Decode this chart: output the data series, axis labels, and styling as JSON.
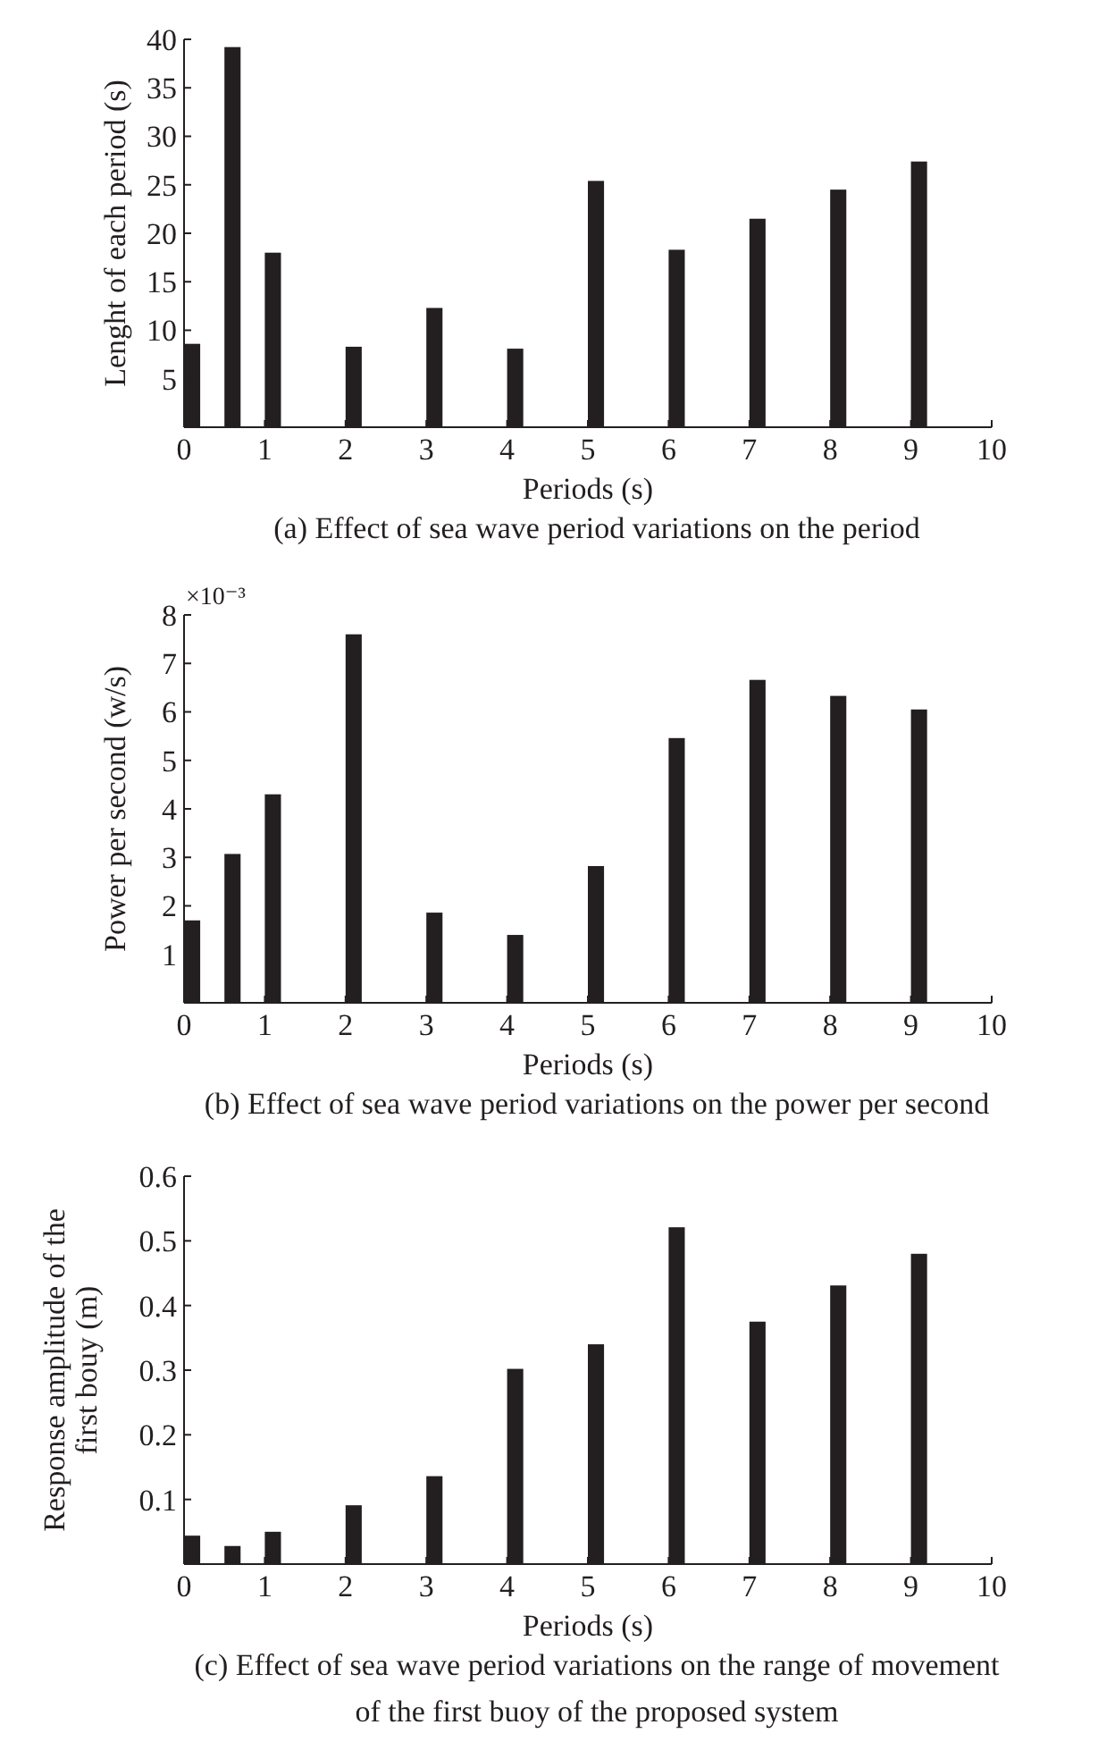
{
  "chart_data": [
    {
      "type": "bar",
      "title": "(a) Effect of sea wave period variations on the period",
      "xlabel": "Periods (s)",
      "ylabel": "Lenght of each period (s)",
      "x": [
        0.1,
        0.6,
        1.1,
        2.1,
        3.1,
        4.1,
        5.1,
        6.1,
        7.1,
        8.1,
        9.1
      ],
      "values": [
        8.6,
        39.2,
        18.0,
        8.3,
        12.3,
        8.1,
        25.4,
        18.3,
        21.5,
        24.5,
        27.4
      ],
      "color": "#231f20",
      "xlim": [
        0,
        10
      ],
      "xticks": [
        0,
        1,
        2,
        3,
        4,
        5,
        6,
        7,
        8,
        9,
        10
      ],
      "ylim": [
        0,
        40
      ],
      "yticks": [
        5,
        10,
        15,
        20,
        25,
        30,
        35,
        40
      ],
      "grid": false
    },
    {
      "type": "bar",
      "title": "(b) Effect of sea wave period variations on the power per second",
      "xlabel": "Periods (s)",
      "ylabel": "Power per second (w/s)",
      "annotations": [
        "×10⁻³"
      ],
      "x": [
        0.1,
        0.6,
        1.1,
        2.1,
        3.1,
        4.1,
        5.1,
        6.1,
        7.1,
        8.1,
        9.1
      ],
      "values": [
        1.7,
        3.07,
        4.3,
        7.6,
        1.86,
        1.4,
        2.82,
        5.46,
        6.66,
        6.33,
        6.05
      ],
      "color": "#231f20",
      "xlim": [
        0,
        10
      ],
      "xticks": [
        0,
        1,
        2,
        3,
        4,
        5,
        6,
        7,
        8,
        9,
        10
      ],
      "ylim": [
        0,
        8
      ],
      "yticks": [
        1,
        2,
        3,
        4,
        5,
        6,
        7,
        8
      ],
      "grid": false
    },
    {
      "type": "bar",
      "title": "(c) Effect of sea wave period variations on the range of movement of the first buoy of the proposed system",
      "xlabel": "Periods (s)",
      "ylabel": "Response amplitude of the first bouy (m)",
      "x": [
        0.1,
        0.6,
        1.1,
        2.1,
        3.1,
        4.1,
        5.1,
        6.1,
        7.1,
        8.1,
        9.1
      ],
      "values": [
        0.044,
        0.028,
        0.05,
        0.091,
        0.136,
        0.302,
        0.34,
        0.521,
        0.375,
        0.431,
        0.48
      ],
      "color": "#231f20",
      "xlim": [
        0,
        10
      ],
      "xticks": [
        0,
        1,
        2,
        3,
        4,
        5,
        6,
        7,
        8,
        9,
        10
      ],
      "ylim": [
        0,
        0.6
      ],
      "yticks": [
        0.1,
        0.2,
        0.3,
        0.4,
        0.5,
        0.6
      ],
      "grid": false
    }
  ]
}
